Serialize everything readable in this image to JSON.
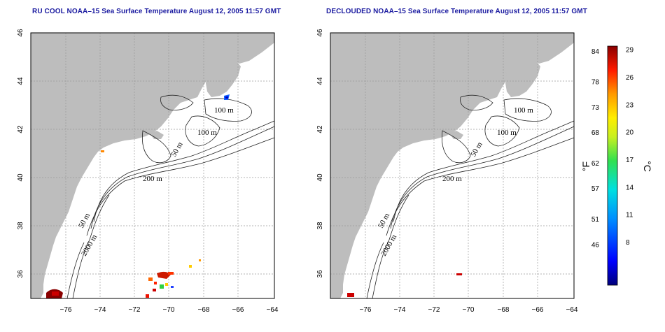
{
  "maps": [
    {
      "title": "RU COOL NOAA–15 Sea Surface Temperature August 12, 2005 11:57 GMT",
      "depth_labels": [
        "100 m",
        "100 m",
        "50 m",
        "200 m",
        "50 m",
        "2000 m"
      ]
    },
    {
      "title": "DECLOUDED NOAA–15 Sea Surface Temperature August 12, 2005 11:57 GMT",
      "depth_labels": [
        "100 m",
        "100 m",
        "50 m",
        "200 m",
        "50 m",
        "2000 m"
      ]
    }
  ],
  "x_ticks": [
    "−76",
    "−74",
    "−72",
    "−70",
    "−68",
    "−66",
    "−64"
  ],
  "y_ticks": [
    "46",
    "44",
    "42",
    "40",
    "38",
    "36"
  ],
  "colorbar": {
    "fahrenheit_ticks": [
      "84",
      "78",
      "73",
      "68",
      "62",
      "57",
      "51",
      "46"
    ],
    "celsius_ticks": [
      "29",
      "26",
      "23",
      "20",
      "17",
      "14",
      "11",
      "8"
    ],
    "unit_f": "°F",
    "unit_c": "°C",
    "range_f": [
      38,
      85
    ],
    "range_c": [
      3.3,
      29.4
    ]
  },
  "colors": {
    "land": "#bdbdbd",
    "ocean": "#ffffff",
    "grid": "#9a9a9a",
    "title": "#1a1aa0"
  }
}
